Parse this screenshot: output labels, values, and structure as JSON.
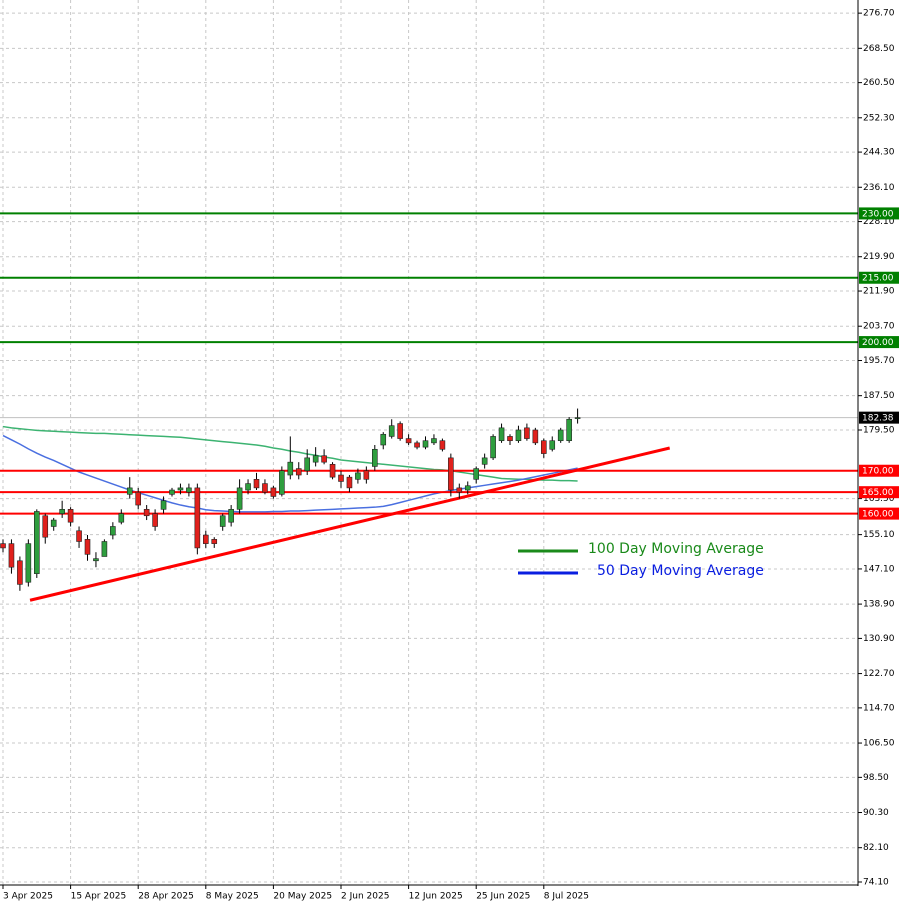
{
  "chart_data": {
    "type": "candlestick",
    "categories": [
      "3 Apr 2025",
      null,
      null,
      null,
      null,
      null,
      null,
      null,
      "15 Apr 2025",
      null,
      null,
      null,
      null,
      null,
      null,
      null,
      "28 Apr 2025",
      null,
      null,
      null,
      null,
      null,
      null,
      null,
      "8 May 2025",
      null,
      null,
      null,
      null,
      null,
      null,
      null,
      "20 May 2025",
      null,
      null,
      null,
      null,
      null,
      null,
      null,
      "2 Jun 2025",
      null,
      null,
      null,
      null,
      null,
      null,
      null,
      "12 Jun 2025",
      null,
      null,
      null,
      null,
      null,
      null,
      null,
      "25 Jun 2025",
      null,
      null,
      null,
      null,
      null,
      null,
      null,
      "8 Jul 2025",
      null,
      null,
      null,
      null
    ],
    "open": [
      153,
      153,
      149,
      144,
      146,
      159.5,
      157,
      160,
      161,
      156,
      154,
      149,
      150,
      155,
      158,
      164.5,
      165,
      161,
      160,
      161,
      164.5,
      165.5,
      165,
      166,
      155,
      154,
      157,
      158,
      161,
      165.5,
      168,
      167,
      166,
      164.5,
      169,
      170.5,
      170,
      172,
      173.5,
      171.5,
      169,
      168.5,
      168,
      170,
      171,
      176,
      178,
      181,
      177.5,
      176.5,
      175.5,
      176.5,
      177,
      173,
      166,
      165.5,
      168,
      171.5,
      173,
      177,
      178,
      177,
      180,
      179.5,
      177,
      175,
      177,
      177,
      182.2
    ],
    "high": [
      154,
      154,
      150,
      154,
      161,
      160,
      159,
      163,
      161.5,
      157,
      155,
      151,
      154,
      158,
      161,
      168.5,
      166,
      162,
      161,
      164,
      166,
      167,
      167,
      167,
      156,
      154.5,
      160,
      162,
      168,
      168,
      169.5,
      168,
      166.5,
      171,
      178,
      172,
      175,
      175.5,
      175,
      172,
      170,
      169,
      170.5,
      171,
      176,
      179,
      182,
      181.5,
      178.5,
      177,
      178,
      178.5,
      177.5,
      174,
      167,
      167.5,
      171,
      174,
      178.5,
      181,
      178.5,
      180.5,
      181,
      180,
      177.5,
      178,
      180,
      182.5,
      184.5
    ],
    "low": [
      151,
      146,
      142,
      143,
      145,
      153,
      156,
      159,
      157,
      152,
      149,
      147.5,
      150,
      154,
      157.5,
      163.5,
      161,
      158.5,
      156,
      160,
      164,
      164.5,
      164,
      150.5,
      152,
      152,
      156,
      157,
      160,
      164.5,
      165.5,
      164.5,
      163.5,
      164,
      168,
      168,
      169,
      171,
      171.5,
      168,
      166,
      165,
      167,
      167,
      170,
      175,
      177.5,
      177,
      176,
      175,
      175,
      176,
      174.5,
      164,
      163.5,
      164.5,
      167,
      170.5,
      172.5,
      176.5,
      176,
      176.5,
      177,
      176,
      173,
      174.5,
      176.5,
      176.5,
      181
    ],
    "close": [
      152,
      147.5,
      143.5,
      153,
      160.5,
      154.5,
      158.5,
      161,
      158,
      153.5,
      150.5,
      149.5,
      153.5,
      157,
      160,
      166,
      162,
      159.5,
      157,
      163,
      165.5,
      166,
      166,
      152,
      153,
      153,
      159.5,
      161,
      166,
      167,
      166,
      165,
      164,
      170,
      172,
      169,
      173,
      173.5,
      172,
      168.5,
      167.5,
      166,
      169.5,
      168,
      175,
      178.5,
      180.5,
      177.5,
      176.5,
      175.5,
      177,
      177.5,
      175,
      165.5,
      165,
      166.5,
      170.5,
      173,
      178,
      180,
      177,
      179.5,
      177.5,
      176.5,
      174,
      177,
      179.5,
      182,
      182.38
    ],
    "up_color": "#2e9e3e",
    "down_color": "#e0201c",
    "series": [
      {
        "name": "100 Day Moving Average",
        "color": "#3cb371",
        "legend_color": "#1a8a1a",
        "values": [
          180.3,
          180.0,
          179.8,
          179.6,
          179.4,
          179.3,
          179.2,
          179.1,
          179.0,
          178.9,
          178.8,
          178.7,
          178.7,
          178.6,
          178.5,
          178.4,
          178.3,
          178.2,
          178.1,
          178.0,
          177.9,
          177.8,
          177.6,
          177.4,
          177.2,
          177.0,
          176.8,
          176.6,
          176.4,
          176.2,
          176.0,
          175.7,
          175.3,
          175.0,
          174.6,
          174.3,
          173.9,
          173.6,
          173.2,
          172.9,
          172.5,
          172.3,
          172.1,
          171.9,
          171.7,
          171.5,
          171.3,
          171.1,
          170.9,
          170.7,
          170.5,
          170.3,
          170.2,
          170.0,
          169.7,
          169.4,
          169.1,
          168.8,
          168.5,
          168.2,
          168.1,
          168.0,
          168.0,
          167.9,
          167.8,
          167.8,
          167.7,
          167.7,
          167.6
        ]
      },
      {
        "name": "50 Day Moving Average",
        "color": "#4a6fe0",
        "legend_color": "#0a1ee0",
        "values": [
          178.2,
          177.2,
          176.2,
          175.1,
          174.1,
          173.2,
          172.4,
          171.5,
          170.6,
          169.7,
          169.0,
          168.3,
          167.6,
          166.9,
          166.2,
          165.5,
          164.9,
          164.3,
          163.7,
          163.1,
          162.5,
          162.0,
          161.6,
          161.3,
          160.9,
          160.7,
          160.6,
          160.5,
          160.4,
          160.4,
          160.4,
          160.4,
          160.5,
          160.5,
          160.6,
          160.6,
          160.7,
          160.8,
          160.9,
          161.0,
          161.1,
          161.2,
          161.3,
          161.4,
          161.5,
          161.7,
          162.1,
          162.6,
          163.1,
          163.6,
          164.1,
          164.6,
          165.0,
          165.4,
          165.7,
          166.0,
          166.3,
          166.6,
          166.9,
          167.2,
          167.5,
          167.8,
          168.2,
          168.6,
          169.0,
          169.4,
          169.8,
          170.2,
          170.6
        ]
      }
    ],
    "levels": [
      {
        "value": 230,
        "label": "230.00",
        "color": "#008000"
      },
      {
        "value": 215,
        "label": "215.00",
        "color": "#008000"
      },
      {
        "value": 200,
        "label": "200.00",
        "color": "#008000"
      },
      {
        "value": 170,
        "label": "170.00",
        "color": "#ff0000"
      },
      {
        "value": 165,
        "label": "165.00",
        "color": "#ff0000"
      },
      {
        "value": 160,
        "label": "160.00",
        "color": "#ff0000"
      }
    ],
    "trendline": {
      "color": "#ff0000",
      "x": [
        3.2,
        78.9
      ],
      "y": [
        139.8,
        175.3
      ]
    },
    "last_price": {
      "value": 182.38,
      "label": "182.38"
    },
    "ylim": [
      73.4,
      279.3
    ],
    "yticks": [
      {
        "value": 276.7,
        "label": "276.70"
      },
      {
        "value": 268.5,
        "label": "268.50"
      },
      {
        "value": 260.5,
        "label": "260.50"
      },
      {
        "value": 252.3,
        "label": "252.30"
      },
      {
        "value": 244.3,
        "label": "244.30"
      },
      {
        "value": 236.1,
        "label": "236.10"
      },
      {
        "value": 228.1,
        "label": "228.10"
      },
      {
        "value": 219.9,
        "label": "219.90"
      },
      {
        "value": 211.9,
        "label": "211.90"
      },
      {
        "value": 203.7,
        "label": "203.70"
      },
      {
        "value": 195.7,
        "label": "195.70"
      },
      {
        "value": 187.5,
        "label": "187.50"
      },
      {
        "value": 179.5,
        "label": "179.50"
      },
      {
        "value": 163.5,
        "label": "163.50"
      },
      {
        "value": 155.1,
        "label": "155.10"
      },
      {
        "value": 147.1,
        "label": "147.10"
      },
      {
        "value": 138.9,
        "label": "138.90"
      },
      {
        "value": 130.9,
        "label": "130.90"
      },
      {
        "value": 122.7,
        "label": "122.70"
      },
      {
        "value": 114.7,
        "label": "114.70"
      },
      {
        "value": 106.5,
        "label": "106.50"
      },
      {
        "value": 98.5,
        "label": "98.50"
      },
      {
        "value": 90.3,
        "label": "90.30"
      },
      {
        "value": 82.1,
        "label": "82.10"
      },
      {
        "value": 74.1,
        "label": "74.10"
      }
    ],
    "grid": true
  }
}
